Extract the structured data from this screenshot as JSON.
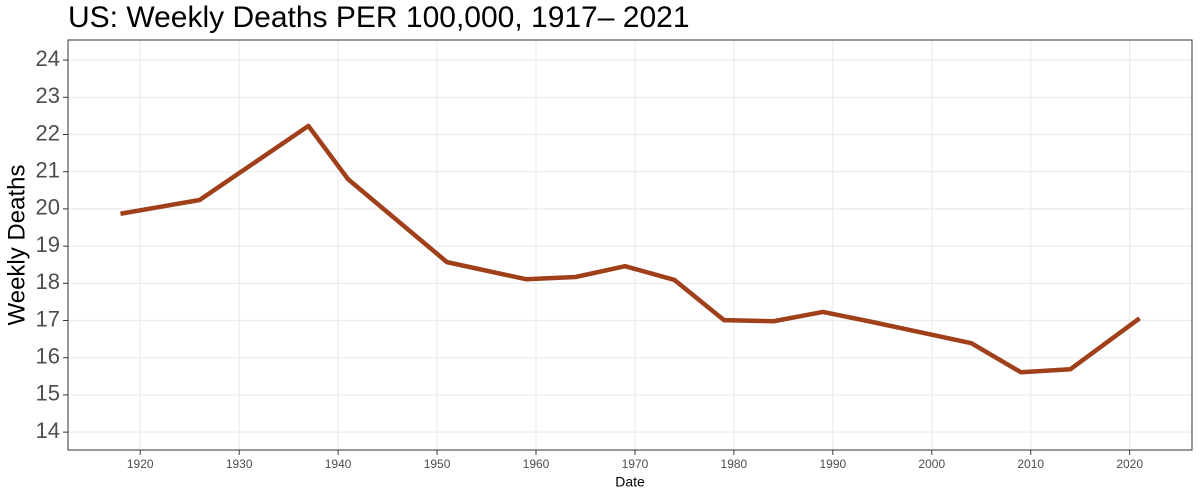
{
  "chart_data": {
    "type": "line",
    "title": "US: Weekly Deaths PER 100,000, 1917– 2021",
    "x_label": "Date",
    "y_label": "Weekly Deaths",
    "x": [
      1918,
      1926,
      1937,
      1941,
      1951,
      1959,
      1964,
      1969,
      1974,
      1979,
      1984,
      1989,
      1994,
      2004,
      2009,
      2014,
      2021
    ],
    "series": [
      {
        "name": "Weekly Deaths",
        "color": "#a0401a",
        "values": [
          19.87,
          20.24,
          22.23,
          20.8,
          18.57,
          18.11,
          18.17,
          18.46,
          18.09,
          17.01,
          16.98,
          17.23,
          16.96,
          16.39,
          15.61,
          15.69,
          17.06
        ]
      }
    ],
    "xlim": [
      1912.7,
      2026.3
    ],
    "xticks": [
      1920,
      1930,
      1940,
      1950,
      1960,
      1970,
      1980,
      1990,
      2000,
      2010,
      2020
    ],
    "ylim": [
      13.52,
      24.54
    ],
    "yticks": [
      14,
      15,
      16,
      17,
      18,
      19,
      20,
      21,
      22,
      23,
      24
    ],
    "grid": true
  }
}
